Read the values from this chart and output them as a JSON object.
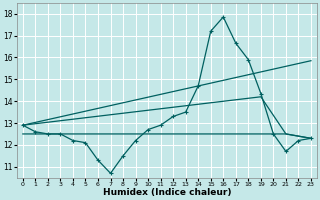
{
  "xlabel": "Humidex (Indice chaleur)",
  "xlim": [
    -0.5,
    23.5
  ],
  "ylim": [
    10.5,
    18.5
  ],
  "yticks": [
    11,
    12,
    13,
    14,
    15,
    16,
    17,
    18
  ],
  "xticks": [
    0,
    1,
    2,
    3,
    4,
    5,
    6,
    7,
    8,
    9,
    10,
    11,
    12,
    13,
    14,
    15,
    16,
    17,
    18,
    19,
    20,
    21,
    22,
    23
  ],
  "bg_color": "#c5e8e8",
  "line_color": "#006060",
  "grid_color": "#ffffff",
  "line_main": {
    "x": [
      0,
      1,
      2,
      3,
      4,
      5,
      6,
      7,
      8,
      9,
      10,
      11,
      12,
      13,
      14,
      15,
      16,
      17,
      18,
      19,
      20,
      21,
      22,
      23
    ],
    "y": [
      12.9,
      12.6,
      12.5,
      12.5,
      12.2,
      12.1,
      11.3,
      10.7,
      11.5,
      12.2,
      12.7,
      12.9,
      13.3,
      13.5,
      14.7,
      17.2,
      17.85,
      16.65,
      15.9,
      14.35,
      12.5,
      11.7,
      12.2,
      12.3
    ]
  },
  "line_diag1": {
    "x": [
      0,
      23
    ],
    "y": [
      12.9,
      15.85
    ]
  },
  "line_diag2": {
    "x": [
      0,
      19,
      21,
      23
    ],
    "y": [
      12.9,
      14.2,
      12.5,
      12.3
    ]
  },
  "line_flat": {
    "x": [
      0,
      10,
      21,
      23
    ],
    "y": [
      12.5,
      12.5,
      12.5,
      12.3
    ]
  }
}
